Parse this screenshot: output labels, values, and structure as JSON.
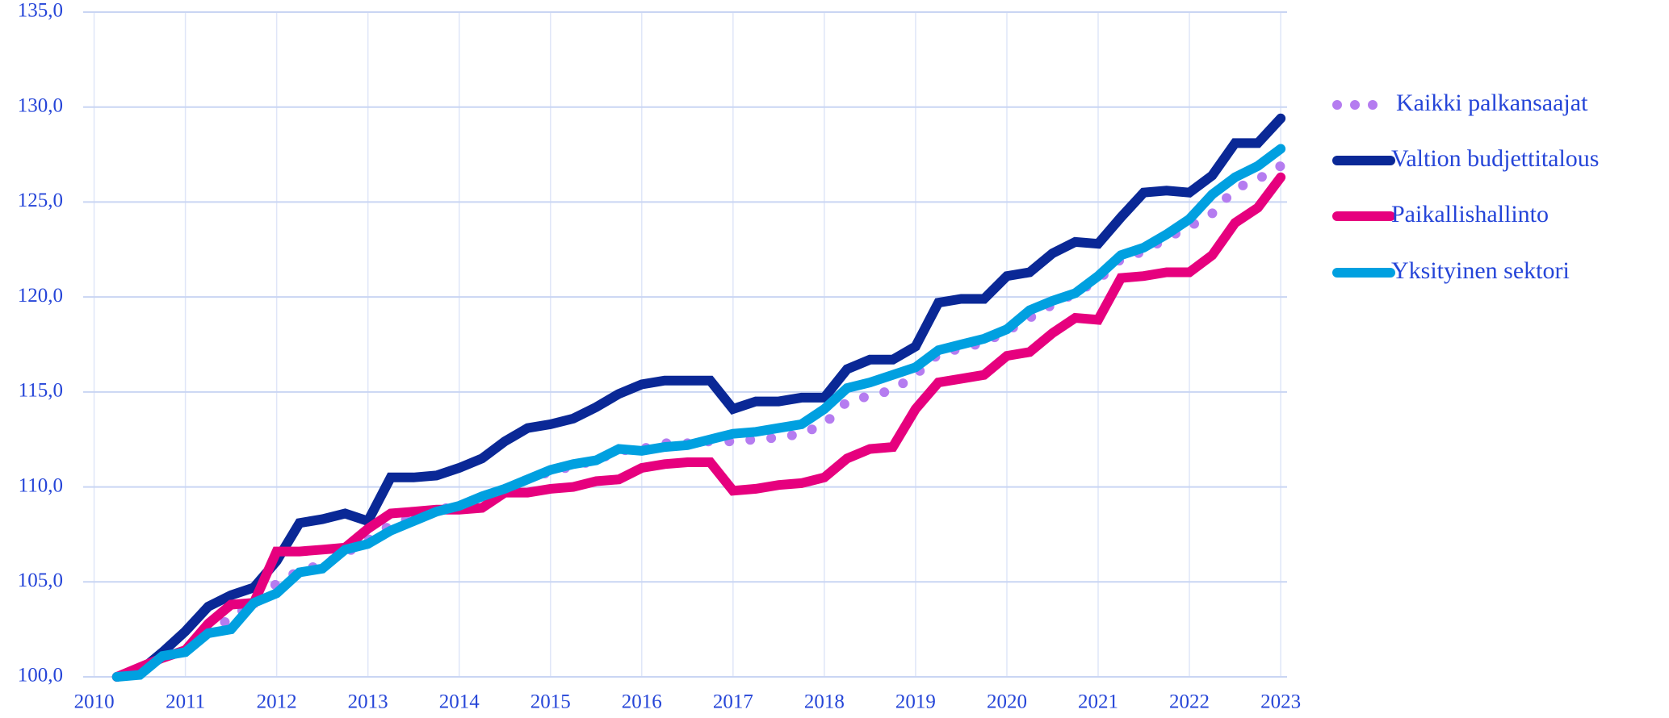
{
  "chart_data": {
    "type": "line",
    "x": [
      2010.25,
      2010.5,
      2010.75,
      2011,
      2011.25,
      2011.5,
      2011.75,
      2012,
      2012.25,
      2012.5,
      2012.75,
      2013,
      2013.25,
      2013.5,
      2013.75,
      2014,
      2014.25,
      2014.5,
      2014.75,
      2015,
      2015.25,
      2015.5,
      2015.75,
      2016,
      2016.25,
      2016.5,
      2016.75,
      2017,
      2017.25,
      2017.5,
      2017.75,
      2018,
      2018.25,
      2018.5,
      2018.75,
      2019,
      2019.25,
      2019.5,
      2019.75,
      2020,
      2020.25,
      2020.5,
      2020.75,
      2021,
      2021.25,
      2021.5,
      2021.75,
      2022,
      2022.25,
      2022.5,
      2022.75,
      2023
    ],
    "series": [
      {
        "name": "Kaikki palkansaajat",
        "color": "#b57cf0",
        "dotted": true,
        "values": [
          100,
          100.2,
          101.1,
          101.3,
          102.6,
          103.0,
          104.0,
          104.9,
          105.6,
          105.9,
          106.5,
          107.2,
          108.0,
          108.4,
          108.8,
          109.0,
          109.5,
          109.9,
          110.4,
          110.8,
          111.1,
          111.4,
          111.9,
          112.0,
          112.3,
          112.3,
          112.4,
          112.4,
          112.5,
          112.6,
          112.8,
          113.3,
          114.5,
          114.8,
          115.1,
          115.9,
          117.0,
          117.3,
          117.6,
          118.2,
          118.9,
          119.6,
          120.2,
          120.9,
          122.0,
          122.4,
          123.1,
          123.7,
          124.4,
          125.7,
          126.2,
          126.9
        ]
      },
      {
        "name": "Valtion budjettitalous",
        "color": "#0a2896",
        "values": [
          100,
          100.3,
          101.3,
          102.4,
          103.7,
          104.3,
          104.7,
          106.1,
          108.1,
          108.3,
          108.6,
          108.2,
          110.5,
          110.5,
          110.6,
          111.0,
          111.5,
          112.4,
          113.1,
          113.3,
          113.6,
          114.2,
          114.9,
          115.4,
          115.6,
          115.6,
          115.6,
          114.1,
          114.5,
          114.5,
          114.7,
          114.7,
          116.2,
          116.7,
          116.7,
          117.4,
          119.7,
          119.9,
          119.9,
          121.1,
          121.3,
          122.3,
          122.9,
          122.8,
          124.2,
          125.5,
          125.6,
          125.5,
          126.4,
          128.1,
          128.1,
          129.4
        ]
      },
      {
        "name": "Paikallishallinto",
        "color": "#e6007e",
        "values": [
          100,
          100.5,
          101.0,
          101.4,
          102.8,
          103.8,
          103.9,
          106.6,
          106.6,
          106.7,
          106.8,
          107.8,
          108.6,
          108.7,
          108.8,
          108.8,
          108.9,
          109.7,
          109.7,
          109.9,
          110.0,
          110.3,
          110.4,
          111.0,
          111.2,
          111.3,
          111.3,
          109.8,
          109.9,
          110.1,
          110.2,
          110.5,
          111.5,
          112.0,
          112.1,
          114.1,
          115.5,
          115.7,
          115.9,
          116.9,
          117.1,
          118.1,
          118.9,
          118.8,
          121.0,
          121.1,
          121.3,
          121.3,
          122.2,
          123.9,
          124.7,
          126.3
        ]
      },
      {
        "name": "Yksityinen sektori",
        "color": "#00a0e0",
        "values": [
          100,
          100.1,
          101.1,
          101.3,
          102.3,
          102.5,
          103.9,
          104.4,
          105.5,
          105.7,
          106.7,
          107.0,
          107.7,
          108.2,
          108.7,
          109.0,
          109.5,
          109.9,
          110.4,
          110.9,
          111.2,
          111.4,
          112.0,
          111.9,
          112.1,
          112.2,
          112.5,
          112.8,
          112.9,
          113.1,
          113.3,
          114.1,
          115.2,
          115.5,
          115.9,
          116.3,
          117.2,
          117.5,
          117.8,
          118.3,
          119.3,
          119.8,
          120.2,
          121.1,
          122.2,
          122.6,
          123.3,
          124.1,
          125.4,
          126.3,
          126.9,
          127.8
        ]
      }
    ],
    "xlim": [
      2009.88,
      2023.07
    ],
    "xticks": [
      2010,
      2011,
      2012,
      2013,
      2014,
      2015,
      2016,
      2017,
      2018,
      2019,
      2020,
      2021,
      2022,
      2023
    ],
    "ylim": [
      100,
      135
    ],
    "yticks": [
      {
        "value": 100,
        "label": "100,0"
      },
      {
        "value": 105,
        "label": "105,0"
      },
      {
        "value": 110,
        "label": "110,0"
      },
      {
        "value": 115,
        "label": "115,0"
      },
      {
        "value": 120,
        "label": "120,0"
      },
      {
        "value": 125,
        "label": "125,0"
      },
      {
        "value": 130,
        "label": "130,0"
      },
      {
        "value": 135,
        "label": "135,0"
      }
    ],
    "grid": true,
    "legend": "right"
  }
}
